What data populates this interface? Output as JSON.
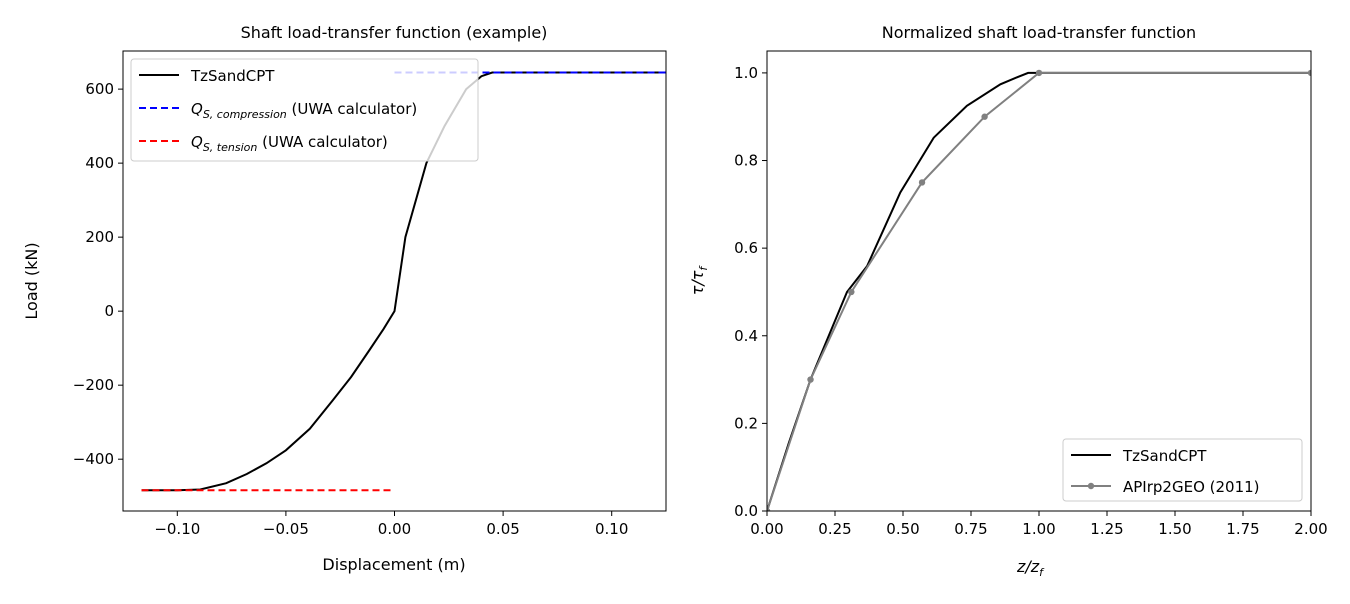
{
  "chart_data": [
    {
      "type": "line",
      "title": "Shaft load-transfer function (example)",
      "xlabel": "Displacement (m)",
      "ylabel": "Load (kN)",
      "xlim": [
        -0.125,
        0.125
      ],
      "ylim": [
        -540,
        703
      ],
      "xticks": [
        -0.1,
        -0.05,
        0.0,
        0.05,
        0.1
      ],
      "xtick_labels": [
        "−0.10",
        "−0.05",
        "0.00",
        "0.05",
        "0.10"
      ],
      "yticks": [
        -400,
        -200,
        0,
        200,
        400,
        600
      ],
      "ytick_labels": [
        "−400",
        "−200",
        "0",
        "200",
        "400",
        "600"
      ],
      "grid": false,
      "legend": "upper-left",
      "series": [
        {
          "name": "TzSandCPT",
          "color": "#000000",
          "style": "solid",
          "x": [
            -0.1165,
            -0.1,
            -0.0894,
            -0.0775,
            -0.068,
            -0.059,
            -0.05,
            -0.039,
            -0.0284,
            -0.02,
            -0.0115,
            -0.005,
            0.0,
            0.005,
            0.0147,
            0.023,
            0.033,
            0.04,
            0.045,
            0.05,
            0.125
          ],
          "y": [
            -484,
            -484,
            -482,
            -465,
            -440,
            -411,
            -376,
            -318,
            -241,
            -178,
            -105,
            -48,
            0,
            200,
            400,
            500,
            600,
            635,
            645,
            645,
            645
          ]
        },
        {
          "name_main": "Q",
          "name_sub": "S, compression",
          "name_suffix": " (UWA calculator)",
          "color": "#0000ff",
          "style": "dashed",
          "x": [
            0.0,
            0.125
          ],
          "y": [
            645,
            645
          ]
        },
        {
          "name_main": "Q",
          "name_sub": "S, tension",
          "name_suffix": " (UWA calculator)",
          "color": "#ff0000",
          "style": "dashed",
          "x": [
            -0.1165,
            0.0
          ],
          "y": [
            -484,
            -484
          ]
        }
      ]
    },
    {
      "type": "line",
      "title": "Normalized shaft load-transfer function",
      "xlabel_main": "z/z",
      "xlabel_sub": "f",
      "ylabel_main": "τ/τ",
      "ylabel_sub": "f",
      "xlim": [
        0,
        2
      ],
      "ylim": [
        0,
        1.05
      ],
      "xticks": [
        0,
        0.25,
        0.5,
        0.75,
        1.0,
        1.25,
        1.5,
        1.75,
        2.0
      ],
      "xtick_labels": [
        "0.00",
        "0.25",
        "0.50",
        "0.75",
        "1.00",
        "1.25",
        "1.50",
        "1.75",
        "2.00"
      ],
      "yticks": [
        0,
        0.2,
        0.4,
        0.6,
        0.8,
        1.0
      ],
      "ytick_labels": [
        "0.0",
        "0.2",
        "0.4",
        "0.6",
        "0.8",
        "1.0"
      ],
      "grid": false,
      "legend": "lower-right",
      "series": [
        {
          "name": "TzSandCPT",
          "color": "#000000",
          "markers": false,
          "x": [
            0,
            0.08,
            0.16,
            0.294,
            0.368,
            0.49,
            0.613,
            0.735,
            0.858,
            0.919,
            0.96,
            1.0,
            2.0
          ],
          "y": [
            0,
            0.155,
            0.3,
            0.5,
            0.559,
            0.727,
            0.852,
            0.925,
            0.974,
            0.99,
            1.0,
            1.0,
            1.0
          ]
        },
        {
          "name": "APIrp2GEO (2011)",
          "color": "#808080",
          "markers": true,
          "x": [
            0,
            0.16,
            0.31,
            0.57,
            0.8,
            1.0,
            2.0
          ],
          "y": [
            0,
            0.3,
            0.5,
            0.75,
            0.9,
            1.0,
            1.0
          ]
        }
      ]
    }
  ]
}
